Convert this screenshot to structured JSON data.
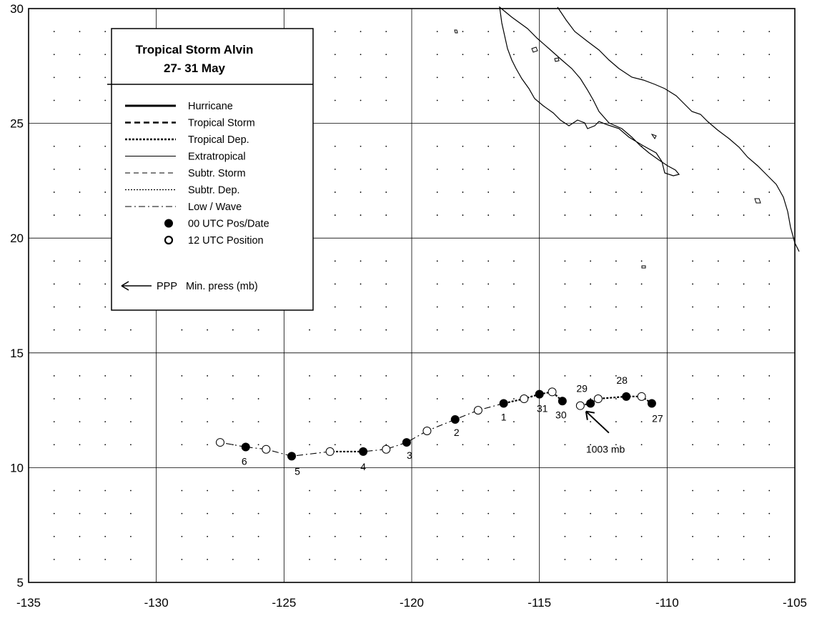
{
  "title": {
    "line1": "Tropical Storm Alvin",
    "line2": "27- 31 May"
  },
  "axes": {
    "lon_range": [
      -135,
      -105
    ],
    "lat_range": [
      5,
      30
    ],
    "x_ticks": [
      -135,
      -130,
      -125,
      -120,
      -115,
      -110,
      -105
    ],
    "y_ticks": [
      5,
      10,
      15,
      20,
      25,
      30
    ],
    "grid": true
  },
  "legend": {
    "placement": "top-left",
    "items": [
      {
        "label": "Hurricane",
        "style": "hurricane"
      },
      {
        "label": "Tropical Storm",
        "style": "tropical-storm"
      },
      {
        "label": "Tropical Dep.",
        "style": "tropical-dep"
      },
      {
        "label": "Extratropical",
        "style": "extratropical"
      },
      {
        "label": "Subtr. Storm",
        "style": "subtr-storm"
      },
      {
        "label": "Subtr. Dep.",
        "style": "subtr-dep"
      },
      {
        "label": "Low / Wave",
        "style": "low-wave"
      },
      {
        "label": "00 UTC Pos/Date",
        "style": "filled-dot"
      },
      {
        "label": "12 UTC Position",
        "style": "open-dot"
      }
    ],
    "pressure_item": {
      "code": "PPP",
      "label": "Min. press (mb)"
    }
  },
  "track": [
    {
      "lon": -110.6,
      "lat": 12.8,
      "type": "00",
      "label": "27",
      "status": "tropical-dep"
    },
    {
      "lon": -111.0,
      "lat": 13.1,
      "type": "12",
      "status": "tropical-dep"
    },
    {
      "lon": -111.6,
      "lat": 13.1,
      "type": "00",
      "label": "28",
      "status": "tropical-dep"
    },
    {
      "lon": -112.7,
      "lat": 13.0,
      "type": "12",
      "status": "low-wave"
    },
    {
      "lon": -113.0,
      "lat": 12.8,
      "type": "00",
      "label": "29",
      "status": "tropical-dep"
    },
    {
      "lon": -113.4,
      "lat": 12.7,
      "type": "12",
      "status": "none"
    },
    {
      "lon": -114.1,
      "lat": 12.9,
      "type": "00",
      "label": "30",
      "status": "tropical-dep"
    },
    {
      "lon": -114.5,
      "lat": 13.3,
      "type": "12",
      "status": "tropical-dep"
    },
    {
      "lon": -115.0,
      "lat": 13.2,
      "type": "00",
      "label": "31",
      "status": "tropical-dep"
    },
    {
      "lon": -115.6,
      "lat": 13.0,
      "type": "12",
      "status": "tropical-dep"
    },
    {
      "lon": -116.4,
      "lat": 12.8,
      "type": "00",
      "label": "1",
      "status": "low-wave"
    },
    {
      "lon": -117.4,
      "lat": 12.5,
      "type": "12",
      "status": "low-wave"
    },
    {
      "lon": -118.3,
      "lat": 12.1,
      "type": "00",
      "label": "2",
      "status": "low-wave"
    },
    {
      "lon": -119.4,
      "lat": 11.6,
      "type": "12",
      "status": "low-wave"
    },
    {
      "lon": -120.2,
      "lat": 11.1,
      "type": "00",
      "label": "3",
      "status": "low-wave"
    },
    {
      "lon": -121.0,
      "lat": 10.8,
      "type": "12",
      "status": "low-wave"
    },
    {
      "lon": -121.9,
      "lat": 10.7,
      "type": "00",
      "label": "4",
      "status": "tropical-dep"
    },
    {
      "lon": -123.2,
      "lat": 10.7,
      "type": "12",
      "status": "low-wave"
    },
    {
      "lon": -124.7,
      "lat": 10.5,
      "type": "00",
      "label": "5",
      "status": "low-wave"
    },
    {
      "lon": -125.7,
      "lat": 10.8,
      "type": "12",
      "status": "low-wave"
    },
    {
      "lon": -126.5,
      "lat": 10.9,
      "type": "00",
      "label": "6",
      "status": "low-wave"
    },
    {
      "lon": -127.5,
      "lat": 11.1,
      "type": "12"
    }
  ],
  "pressure_annotation": {
    "text": "1003 mb",
    "lon": -113.4,
    "lat": 12.7
  },
  "colors": {
    "ink": "#000000",
    "background": "#ffffff",
    "grid": "#000000"
  }
}
